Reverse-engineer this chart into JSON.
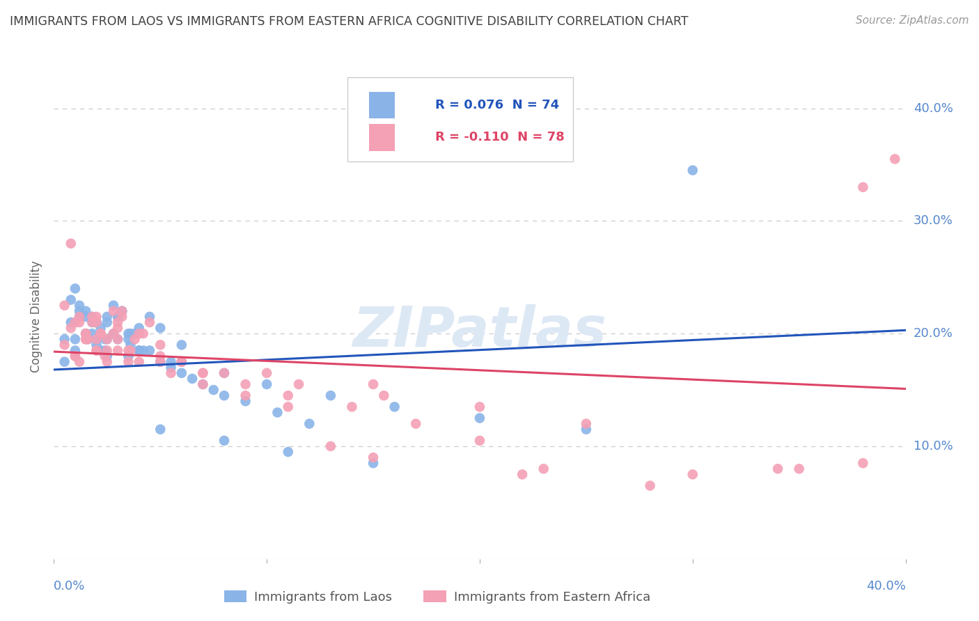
{
  "title": "IMMIGRANTS FROM LAOS VS IMMIGRANTS FROM EASTERN AFRICA COGNITIVE DISABILITY CORRELATION CHART",
  "source": "Source: ZipAtlas.com",
  "ylabel_label": "Cognitive Disability",
  "series1_label": "Immigrants from Laos",
  "series2_label": "Immigrants from Eastern Africa",
  "color_blue": "#8ab4e8",
  "color_pink": "#f4a0b5",
  "line_color_blue": "#2255bb",
  "line_color_pink": "#dd4466",
  "background_color": "#ffffff",
  "grid_color": "#cccccc",
  "title_color": "#404040",
  "axis_color": "#5588cc",
  "watermark": "ZIPatlas",
  "watermark_color": "#dde8f5",
  "xlim": [
    0.0,
    0.4
  ],
  "ylim": [
    0.0,
    0.43
  ],
  "yticks": [
    0.1,
    0.2,
    0.3,
    0.4
  ],
  "blue_n": 74,
  "pink_n": 78,
  "blue_r": "0.076",
  "pink_r": "-0.110",
  "blue_line_y0": 0.168,
  "blue_line_y1": 0.203,
  "pink_line_y0": 0.184,
  "pink_line_y1": 0.151,
  "blue_scatter_x": [
    0.005,
    0.008,
    0.01,
    0.012,
    0.015,
    0.018,
    0.02,
    0.022,
    0.025,
    0.028,
    0.005,
    0.01,
    0.015,
    0.018,
    0.022,
    0.025,
    0.03,
    0.032,
    0.035,
    0.038,
    0.008,
    0.012,
    0.016,
    0.02,
    0.024,
    0.028,
    0.032,
    0.036,
    0.04,
    0.045,
    0.01,
    0.015,
    0.02,
    0.025,
    0.03,
    0.035,
    0.04,
    0.05,
    0.055,
    0.06,
    0.012,
    0.018,
    0.024,
    0.03,
    0.036,
    0.042,
    0.05,
    0.06,
    0.07,
    0.08,
    0.015,
    0.025,
    0.035,
    0.045,
    0.055,
    0.065,
    0.075,
    0.09,
    0.105,
    0.12,
    0.02,
    0.04,
    0.06,
    0.08,
    0.1,
    0.13,
    0.16,
    0.2,
    0.25,
    0.3,
    0.05,
    0.08,
    0.11,
    0.15
  ],
  "blue_scatter_y": [
    0.195,
    0.21,
    0.185,
    0.22,
    0.2,
    0.215,
    0.19,
    0.205,
    0.18,
    0.225,
    0.175,
    0.195,
    0.215,
    0.2,
    0.185,
    0.21,
    0.195,
    0.22,
    0.18,
    0.2,
    0.23,
    0.215,
    0.195,
    0.21,
    0.185,
    0.2,
    0.22,
    0.19,
    0.205,
    0.215,
    0.24,
    0.22,
    0.21,
    0.195,
    0.215,
    0.2,
    0.185,
    0.205,
    0.175,
    0.19,
    0.225,
    0.21,
    0.195,
    0.215,
    0.2,
    0.185,
    0.175,
    0.165,
    0.155,
    0.145,
    0.2,
    0.215,
    0.195,
    0.185,
    0.17,
    0.16,
    0.15,
    0.14,
    0.13,
    0.12,
    0.195,
    0.185,
    0.175,
    0.165,
    0.155,
    0.145,
    0.135,
    0.125,
    0.115,
    0.345,
    0.115,
    0.105,
    0.095,
    0.085
  ],
  "pink_scatter_x": [
    0.005,
    0.008,
    0.01,
    0.012,
    0.015,
    0.018,
    0.02,
    0.022,
    0.025,
    0.028,
    0.005,
    0.01,
    0.015,
    0.018,
    0.022,
    0.025,
    0.03,
    0.032,
    0.035,
    0.038,
    0.008,
    0.012,
    0.016,
    0.02,
    0.024,
    0.028,
    0.032,
    0.036,
    0.04,
    0.045,
    0.01,
    0.015,
    0.02,
    0.025,
    0.03,
    0.035,
    0.042,
    0.05,
    0.06,
    0.07,
    0.012,
    0.02,
    0.03,
    0.04,
    0.055,
    0.07,
    0.09,
    0.11,
    0.13,
    0.15,
    0.015,
    0.03,
    0.05,
    0.07,
    0.09,
    0.11,
    0.14,
    0.17,
    0.2,
    0.23,
    0.02,
    0.05,
    0.08,
    0.115,
    0.155,
    0.2,
    0.25,
    0.3,
    0.35,
    0.38,
    0.06,
    0.1,
    0.15,
    0.22,
    0.28,
    0.34,
    0.38,
    0.395
  ],
  "pink_scatter_y": [
    0.19,
    0.205,
    0.18,
    0.215,
    0.195,
    0.21,
    0.185,
    0.2,
    0.175,
    0.22,
    0.225,
    0.21,
    0.195,
    0.215,
    0.2,
    0.185,
    0.205,
    0.22,
    0.175,
    0.195,
    0.28,
    0.21,
    0.195,
    0.21,
    0.18,
    0.2,
    0.215,
    0.185,
    0.2,
    0.21,
    0.18,
    0.2,
    0.215,
    0.195,
    0.21,
    0.185,
    0.2,
    0.19,
    0.175,
    0.165,
    0.175,
    0.185,
    0.195,
    0.175,
    0.165,
    0.155,
    0.145,
    0.135,
    0.1,
    0.09,
    0.2,
    0.185,
    0.175,
    0.165,
    0.155,
    0.145,
    0.135,
    0.12,
    0.105,
    0.08,
    0.195,
    0.18,
    0.165,
    0.155,
    0.145,
    0.135,
    0.12,
    0.075,
    0.08,
    0.085,
    0.175,
    0.165,
    0.155,
    0.075,
    0.065,
    0.08,
    0.33,
    0.355
  ]
}
